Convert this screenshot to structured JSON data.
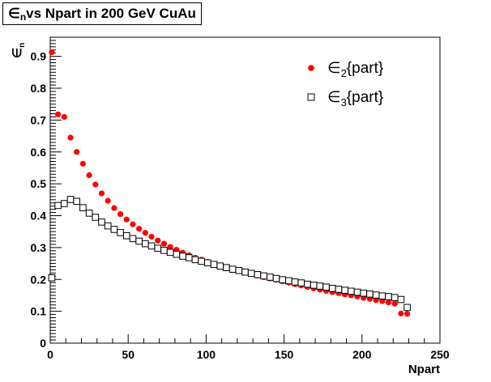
{
  "chart_data": {
    "type": "scatter",
    "title": "∈n vs Npart in 200 GeV CuAu",
    "title_parts": {
      "main": "∈",
      "sub": "n",
      "rest": " vs Npart in 200 GeV CuAu"
    },
    "xlabel": "Npart",
    "ylabel": "∈n",
    "ylabel_parts": {
      "main": "∈",
      "sub": "n"
    },
    "xlim": [
      0,
      250
    ],
    "ylim": [
      0,
      0.96
    ],
    "x_ticks": [
      "0",
      "50",
      "100",
      "150",
      "200",
      "250"
    ],
    "y_ticks": [
      "0",
      "0.1",
      "0.2",
      "0.3",
      "0.4",
      "0.5",
      "0.6",
      "0.7",
      "0.8",
      "0.9"
    ],
    "grid": false,
    "legend_position": "top-right",
    "series": [
      {
        "name": "∈2{part}",
        "legend": {
          "main": "∈",
          "sub": "2",
          "rest": "{part}"
        },
        "marker": "filled-circle",
        "color": "#ff0000",
        "x": [
          1,
          5,
          9,
          13,
          17,
          21,
          25,
          29,
          33,
          37,
          41,
          45,
          49,
          53,
          57,
          61,
          65,
          69,
          73,
          77,
          81,
          85,
          89,
          93,
          97,
          101,
          105,
          109,
          113,
          117,
          121,
          125,
          129,
          133,
          137,
          141,
          145,
          149,
          153,
          157,
          161,
          165,
          169,
          173,
          177,
          181,
          185,
          189,
          193,
          197,
          201,
          205,
          209,
          213,
          217,
          221,
          225,
          229
        ],
        "y": [
          0.913,
          0.718,
          0.71,
          0.645,
          0.6,
          0.563,
          0.527,
          0.498,
          0.47,
          0.447,
          0.424,
          0.405,
          0.388,
          0.373,
          0.359,
          0.346,
          0.334,
          0.322,
          0.312,
          0.302,
          0.293,
          0.284,
          0.276,
          0.268,
          0.262,
          0.255,
          0.248,
          0.242,
          0.237,
          0.232,
          0.227,
          0.222,
          0.217,
          0.212,
          0.207,
          0.203,
          0.199,
          0.194,
          0.19,
          0.185,
          0.181,
          0.176,
          0.172,
          0.168,
          0.164,
          0.16,
          0.157,
          0.153,
          0.15,
          0.146,
          0.142,
          0.139,
          0.135,
          0.132,
          0.128,
          0.124,
          0.093,
          0.092
        ]
      },
      {
        "name": "∈3{part}",
        "legend": {
          "main": "∈",
          "sub": "3",
          "rest": "{part}"
        },
        "marker": "open-square",
        "color": "#000000",
        "x": [
          1,
          5,
          9,
          13,
          17,
          21,
          25,
          29,
          33,
          37,
          41,
          45,
          49,
          53,
          57,
          61,
          65,
          69,
          73,
          77,
          81,
          85,
          89,
          93,
          97,
          101,
          105,
          109,
          113,
          117,
          121,
          125,
          129,
          133,
          137,
          141,
          145,
          149,
          153,
          157,
          161,
          165,
          169,
          173,
          177,
          181,
          185,
          189,
          193,
          197,
          201,
          205,
          209,
          213,
          217,
          221,
          225,
          229
        ],
        "y": [
          0.205,
          0.432,
          0.438,
          0.451,
          0.445,
          0.425,
          0.408,
          0.395,
          0.38,
          0.368,
          0.357,
          0.347,
          0.337,
          0.328,
          0.32,
          0.312,
          0.305,
          0.298,
          0.291,
          0.285,
          0.279,
          0.273,
          0.268,
          0.262,
          0.257,
          0.252,
          0.247,
          0.242,
          0.237,
          0.232,
          0.228,
          0.223,
          0.219,
          0.215,
          0.211,
          0.207,
          0.203,
          0.199,
          0.196,
          0.192,
          0.189,
          0.185,
          0.182,
          0.179,
          0.176,
          0.172,
          0.169,
          0.166,
          0.163,
          0.16,
          0.157,
          0.154,
          0.151,
          0.148,
          0.146,
          0.143,
          0.137,
          0.112
        ]
      }
    ]
  }
}
